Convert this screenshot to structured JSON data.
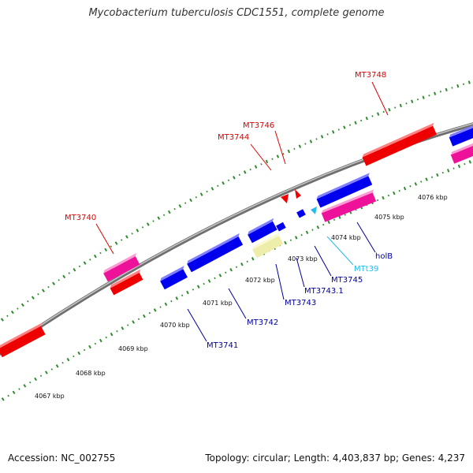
{
  "title": "Mycobacterium tuberculosis CDC1551, complete genome",
  "footer": {
    "accession": "Accession: NC_002755",
    "summary": "Topology: circular; Length: 4,403,837 bp; Genes: 4,237"
  },
  "colors": {
    "backbone": "#888888",
    "tick_green": "#2e8b2e",
    "cds_forward": "#ee0000",
    "cds_reverse": "#0000ee",
    "gene_pink": "#ee1199",
    "misc_yellow": "#eeee99",
    "trna_cyan": "#22bbee",
    "label_forward": "#dd0000",
    "label_reverse": "#000099"
  },
  "kbp_ticks": [
    "4067 kbp",
    "4068 kbp",
    "4069 kbp",
    "4070 kbp",
    "4071 kbp",
    "4072 kbp",
    "4073 kbp",
    "4074 kbp",
    "4075 kbp",
    "4076 kbp"
  ],
  "genes": {
    "forward": [
      "MT3740",
      "MT3744",
      "MT3746",
      "MT3748"
    ],
    "reverse": [
      "MT3741",
      "MT3742",
      "MT3743",
      "MT3743.1",
      "MT3745",
      "holB"
    ],
    "trna": [
      "MTt39"
    ]
  }
}
